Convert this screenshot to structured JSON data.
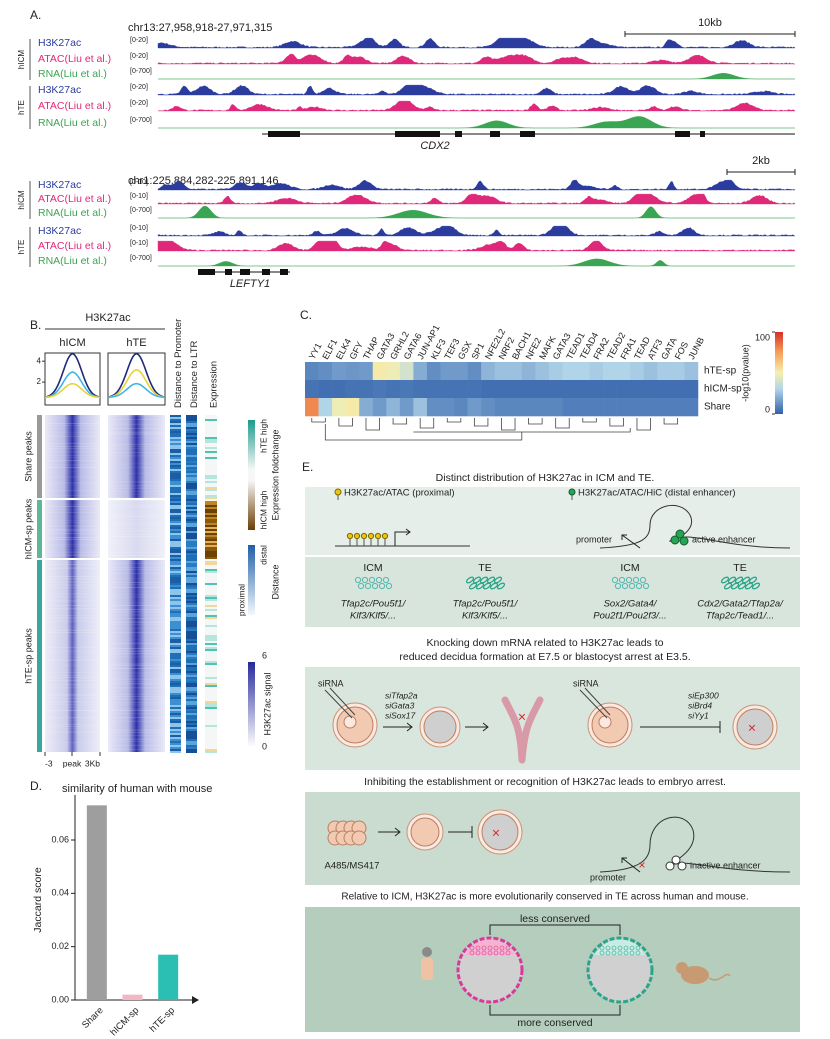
{
  "panels": {
    "A": {
      "label": "A.",
      "locus1": "chr13:27,958,918-27,971,315",
      "scalebar1": "10kb",
      "gene1": "CDX2",
      "locus2": "chr1:225,884,282-225,891,146",
      "scalebar2": "2kb",
      "gene2": "LEFTY1",
      "groups": [
        "hICM",
        "hTE"
      ],
      "tracks": [
        "H3K27ac",
        "ATAC(Liu et al.)",
        "RNA(Liu et al.)"
      ],
      "ranges1": [
        "[0-20]",
        "[0-20]",
        "[0-700]"
      ],
      "ranges2": [
        "[0-10]",
        "[0-10]",
        "[0-700]"
      ]
    },
    "B": {
      "label": "B.",
      "title": "H3K27ac",
      "cols": [
        "hICM",
        "hTE"
      ],
      "profile_ticks": [
        2,
        4
      ],
      "groups": [
        "Share peaks",
        "hICM-sp peaks",
        "hTE-sp peaks"
      ],
      "xlabels": [
        "-3",
        "peak",
        "3Kb"
      ],
      "annot": [
        "Distance to Promoter",
        "Distance to LTR",
        "Expression"
      ],
      "legend": {
        "te_high": "hTE high",
        "icm_high": "hICM high",
        "expr_title": "Expression foldchange",
        "distal": "distal",
        "proximal": "proximal",
        "dist_title": "Distance",
        "sig_max": 6,
        "sig_min": 0,
        "sig_title": "H3K27ac signal"
      }
    },
    "C": {
      "label": "C."
    },
    "D": {
      "label": "D."
    },
    "E": {
      "label": "E.",
      "s1": {
        "title": "Distinct distribution of H3K27ac in ICM and TE.",
        "legend1": "H3K27ac/ATAC (proximal)",
        "legend2": "H3K27ac/ATAC/HiC (distal enhancer)",
        "promoter": "promoter",
        "enhancer": "active enhancer",
        "cells": [
          {
            "name": "ICM",
            "genes": [
              "Tfap2c/Pou5f1/",
              "Klf3/Klf5/..."
            ]
          },
          {
            "name": "TE",
            "genes": [
              "Tfap2c/Pou5f1/",
              "Klf3/Klf5/..."
            ]
          },
          {
            "name": "ICM",
            "genes": [
              "Sox2/Gata4/",
              "Pou2f1/Pou2f3/..."
            ]
          },
          {
            "name": "TE",
            "genes": [
              "Cdx2/Gata2/Tfap2a/",
              "Tfap2c/Tead1/..."
            ]
          }
        ]
      },
      "s2": {
        "title": [
          "Knocking down mRNA related to H3K27ac leads to",
          "reduced decidua formation at E7.5 or blastocyst arrest at E3.5."
        ],
        "left_label": "siRNA",
        "left_si": [
          "siTfap2a",
          "siGata3",
          "siSox17"
        ],
        "right_label": "siRNA",
        "right_si": [
          "siEp300",
          "siBrd4",
          "siYy1"
        ]
      },
      "s3": {
        "title": "Inhibiting the establishment or recognition of H3K27ac leads to embryo arrest.",
        "drug": "A485/MS417",
        "promoter": "promoter",
        "enhancer": "inactive enhancer"
      },
      "s4": {
        "title": "Relative to ICM, H3K27ac is more evolutionarily conserved in TE across human and mouse.",
        "less": "less conserved",
        "more": "more conserved"
      }
    }
  },
  "chart_data": [
    {
      "type": "heatmap",
      "columns": [
        "YY1",
        "ELF1",
        "ELK4",
        "GFY",
        "THAP",
        "GATA3",
        "GRHL2",
        "GATA6",
        "JUN-AP1",
        "KLF3",
        "TEF3",
        "GSX",
        "SP1",
        "NFE2L2",
        "NRF2",
        "BACH1",
        "NFE2",
        "MAFK",
        "GATA3",
        "TEAD1",
        "TEAD4",
        "FRA2",
        "TEAD2",
        "FRA1",
        "TEAD",
        "ATF3",
        "GATA",
        "FOS",
        "JUNB"
      ],
      "rows": [
        "hTE-sp",
        "hICM-sp",
        "Share"
      ],
      "values": [
        [
          10,
          12,
          15,
          14,
          15,
          52,
          48,
          40,
          20,
          12,
          15,
          15,
          12,
          22,
          25,
          25,
          22,
          25,
          28,
          30,
          30,
          28,
          30,
          30,
          28,
          25,
          28,
          28,
          25
        ],
        [
          5,
          4,
          4,
          5,
          5,
          6,
          5,
          6,
          5,
          5,
          5,
          5,
          5,
          4,
          4,
          4,
          4,
          4,
          4,
          4,
          4,
          4,
          4,
          4,
          4,
          4,
          4,
          4,
          4
        ],
        [
          80,
          30,
          48,
          52,
          20,
          15,
          22,
          15,
          25,
          12,
          12,
          10,
          15,
          12,
          10,
          10,
          10,
          10,
          10,
          8,
          8,
          8,
          8,
          8,
          8,
          8,
          8,
          8,
          8
        ]
      ],
      "colorbar_label": "-log10(pvalue)",
      "clim": [
        0,
        100
      ],
      "cticks": [
        0,
        100
      ]
    },
    {
      "type": "bar",
      "title": "similarity of human with mouse",
      "ylabel": "Jaccard score",
      "categories": [
        "Share",
        "hICM-sp",
        "hTE-sp"
      ],
      "values": [
        0.073,
        0.002,
        0.017
      ],
      "colors": [
        "#9e9e9e",
        "#f4b6c2",
        "#2bbfb3"
      ],
      "ylim": [
        0,
        0.075
      ],
      "yticks": [
        {
          "value": 0,
          "label": "0.00"
        },
        0.02,
        0.04,
        0.06
      ]
    }
  ]
}
